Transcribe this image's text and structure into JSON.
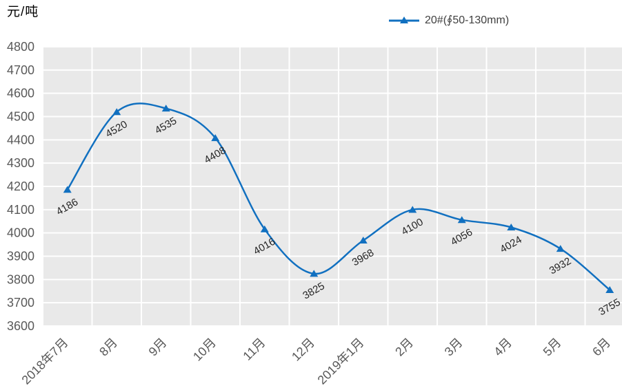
{
  "colors": {
    "line": "#1170C0",
    "plot_bg": "#E9E9E9",
    "grid": "#FFFFFF",
    "axis_text": "#595959",
    "label_text": "#262626",
    "legend_text": "#404040"
  },
  "chart_data": {
    "type": "line",
    "smooth": true,
    "ylabel": "元/吨",
    "categories": [
      "2018年7月",
      "8月",
      "9月",
      "10月",
      "11月",
      "12月",
      "2019年1月",
      "2月",
      "3月",
      "4月",
      "5月",
      "6月"
    ],
    "series": [
      {
        "name": "20#(∮50-130mm)",
        "marker": "triangle",
        "values": [
          4186,
          4520,
          4535,
          4408,
          4016,
          3825,
          3968,
          4100,
          4056,
          4024,
          3932,
          3755
        ]
      }
    ],
    "ylim": [
      3600,
      4800
    ],
    "ytick_step": 100,
    "grid": true,
    "legend_position": "top",
    "data_labels": true
  }
}
